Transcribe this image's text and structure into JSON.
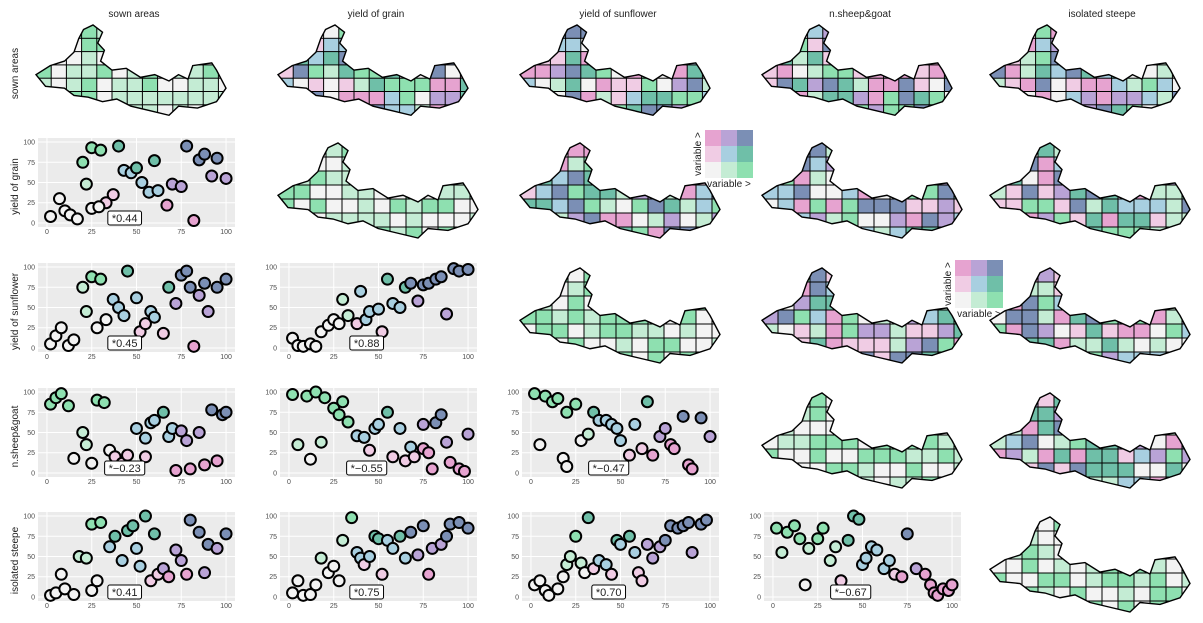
{
  "chart_data": {
    "type": "scatter-matrix",
    "variables": [
      "sown areas",
      "yield of grain",
      "yield of sunflower",
      "n.sheep&goat",
      "isolated steepe"
    ],
    "xlim": [
      -5,
      105
    ],
    "ylim": [
      -5,
      105
    ],
    "xticks": [
      0,
      25,
      50,
      75,
      100
    ],
    "yticks": [
      0,
      25,
      50,
      75,
      100
    ],
    "palette": [
      [
        "#f3f3f3",
        "#c4ecd4",
        "#8ee0b0"
      ],
      [
        "#f0cce4",
        "#a8cfe0",
        "#6fbfa8"
      ],
      [
        "#e6a3d0",
        "#b9a3d6",
        "#7b8fb5"
      ]
    ],
    "legends": [
      {
        "xlabel": "variable >",
        "ylabel": "variable >"
      },
      {
        "xlabel": "variable >",
        "ylabel": "variable >"
      }
    ],
    "panels": [
      {
        "label": "*0.44",
        "x": [
          2,
          7,
          10,
          13,
          17,
          20,
          22,
          25,
          30,
          33,
          37,
          40,
          43,
          47,
          50,
          53,
          57,
          60,
          62,
          67,
          70,
          75,
          78,
          82,
          85,
          88,
          92,
          95,
          100,
          25,
          29
        ],
        "y": [
          8,
          30,
          15,
          10,
          5,
          75,
          48,
          93,
          90,
          25,
          35,
          95,
          65,
          62,
          68,
          50,
          38,
          77,
          40,
          22,
          48,
          45,
          95,
          3,
          78,
          85,
          58,
          80,
          55,
          18,
          20
        ]
      },
      {
        "label": "*0.45",
        "x": [
          2,
          5,
          8,
          12,
          15,
          20,
          22,
          25,
          28,
          30,
          33,
          37,
          40,
          43,
          45,
          50,
          52,
          55,
          58,
          60,
          65,
          68,
          72,
          75,
          78,
          82,
          85,
          88,
          90,
          95,
          100,
          80
        ],
        "y": [
          5,
          15,
          25,
          3,
          10,
          75,
          45,
          88,
          25,
          85,
          35,
          60,
          50,
          40,
          95,
          62,
          20,
          30,
          45,
          38,
          18,
          75,
          55,
          90,
          95,
          2,
          65,
          80,
          45,
          75,
          85,
          75
        ]
      },
      {
        "label": "*0.88",
        "x": [
          2,
          5,
          8,
          12,
          15,
          18,
          22,
          25,
          28,
          30,
          33,
          38,
          40,
          43,
          45,
          50,
          52,
          55,
          58,
          62,
          65,
          68,
          72,
          75,
          78,
          82,
          85,
          88,
          92,
          95,
          100
        ],
        "y": [
          12,
          3,
          2,
          5,
          2,
          20,
          28,
          35,
          30,
          60,
          40,
          30,
          70,
          35,
          45,
          48,
          20,
          85,
          55,
          50,
          75,
          80,
          58,
          78,
          80,
          85,
          88,
          42,
          98,
          95,
          97
        ]
      },
      {
        "label": "*−0.23",
        "x": [
          2,
          5,
          8,
          12,
          15,
          20,
          22,
          25,
          28,
          32,
          35,
          38,
          42,
          45,
          50,
          55,
          58,
          60,
          65,
          68,
          70,
          72,
          75,
          78,
          80,
          85,
          88,
          92,
          95,
          98,
          100,
          55
        ],
        "y": [
          85,
          93,
          98,
          83,
          18,
          50,
          35,
          12,
          90,
          87,
          28,
          20,
          12,
          22,
          55,
          43,
          62,
          65,
          75,
          45,
          55,
          3,
          52,
          40,
          5,
          50,
          10,
          78,
          15,
          72,
          75,
          20
        ]
      },
      {
        "label": "*−0.55",
        "x": [
          2,
          5,
          10,
          12,
          15,
          18,
          20,
          25,
          28,
          30,
          33,
          38,
          42,
          45,
          48,
          50,
          55,
          58,
          62,
          65,
          68,
          70,
          75,
          78,
          80,
          82,
          85,
          88,
          90,
          95,
          98,
          100,
          75
        ],
        "y": [
          97,
          35,
          95,
          17,
          100,
          38,
          93,
          80,
          72,
          88,
          63,
          46,
          44,
          28,
          55,
          60,
          75,
          20,
          55,
          15,
          32,
          20,
          30,
          25,
          5,
          62,
          72,
          38,
          13,
          5,
          2,
          48,
          60
        ]
      },
      {
        "label": "*−0.47",
        "x": [
          2,
          5,
          8,
          12,
          15,
          18,
          20,
          25,
          28,
          32,
          35,
          38,
          42,
          45,
          48,
          50,
          55,
          58,
          62,
          65,
          68,
          72,
          75,
          78,
          80,
          85,
          88,
          90,
          95,
          100,
          20
        ],
        "y": [
          98,
          35,
          95,
          88,
          92,
          18,
          75,
          85,
          40,
          48,
          75,
          65,
          65,
          60,
          55,
          40,
          22,
          60,
          30,
          88,
          22,
          45,
          55,
          35,
          30,
          70,
          10,
          5,
          68,
          45,
          8
        ]
      },
      {
        "label": "*0.41",
        "x": [
          2,
          5,
          8,
          10,
          15,
          18,
          22,
          25,
          28,
          30,
          35,
          38,
          42,
          45,
          48,
          50,
          52,
          55,
          58,
          60,
          62,
          65,
          68,
          72,
          75,
          78,
          80,
          85,
          88,
          90,
          95,
          100,
          25
        ],
        "y": [
          2,
          5,
          28,
          10,
          3,
          50,
          48,
          90,
          20,
          92,
          62,
          75,
          45,
          82,
          88,
          60,
          38,
          100,
          20,
          78,
          28,
          35,
          25,
          58,
          45,
          28,
          95,
          80,
          30,
          65,
          60,
          78,
          8
        ]
      },
      {
        "label": "*0.75",
        "x": [
          2,
          5,
          8,
          12,
          15,
          18,
          22,
          25,
          28,
          30,
          35,
          38,
          40,
          42,
          45,
          48,
          50,
          52,
          55,
          58,
          62,
          65,
          68,
          72,
          75,
          78,
          80,
          85,
          88,
          90,
          95,
          100
        ],
        "y": [
          5,
          20,
          2,
          3,
          15,
          48,
          30,
          38,
          20,
          70,
          98,
          55,
          48,
          40,
          50,
          75,
          72,
          28,
          70,
          60,
          75,
          48,
          80,
          52,
          88,
          28,
          60,
          65,
          75,
          90,
          92,
          85
        ]
      },
      {
        "label": "*0.70",
        "x": [
          2,
          5,
          8,
          10,
          15,
          18,
          20,
          22,
          25,
          28,
          30,
          32,
          35,
          38,
          42,
          45,
          48,
          50,
          55,
          58,
          60,
          62,
          65,
          68,
          72,
          75,
          78,
          82,
          85,
          88,
          90,
          95,
          98
        ],
        "y": [
          15,
          20,
          8,
          2,
          10,
          25,
          40,
          50,
          75,
          42,
          30,
          98,
          35,
          45,
          40,
          28,
          70,
          65,
          75,
          55,
          30,
          20,
          65,
          48,
          62,
          70,
          88,
          85,
          88,
          92,
          55,
          90,
          95
        ]
      },
      {
        "label": "*−0.67",
        "x": [
          2,
          5,
          8,
          12,
          15,
          18,
          20,
          25,
          28,
          32,
          35,
          38,
          42,
          45,
          48,
          50,
          52,
          55,
          58,
          62,
          65,
          68,
          72,
          75,
          80,
          85,
          88,
          90,
          92,
          95,
          98,
          100
        ],
        "y": [
          85,
          55,
          80,
          88,
          72,
          15,
          60,
          72,
          85,
          45,
          62,
          20,
          70,
          100,
          96,
          40,
          48,
          62,
          58,
          35,
          45,
          28,
          25,
          78,
          35,
          28,
          15,
          5,
          2,
          10,
          8,
          15
        ]
      }
    ]
  }
}
